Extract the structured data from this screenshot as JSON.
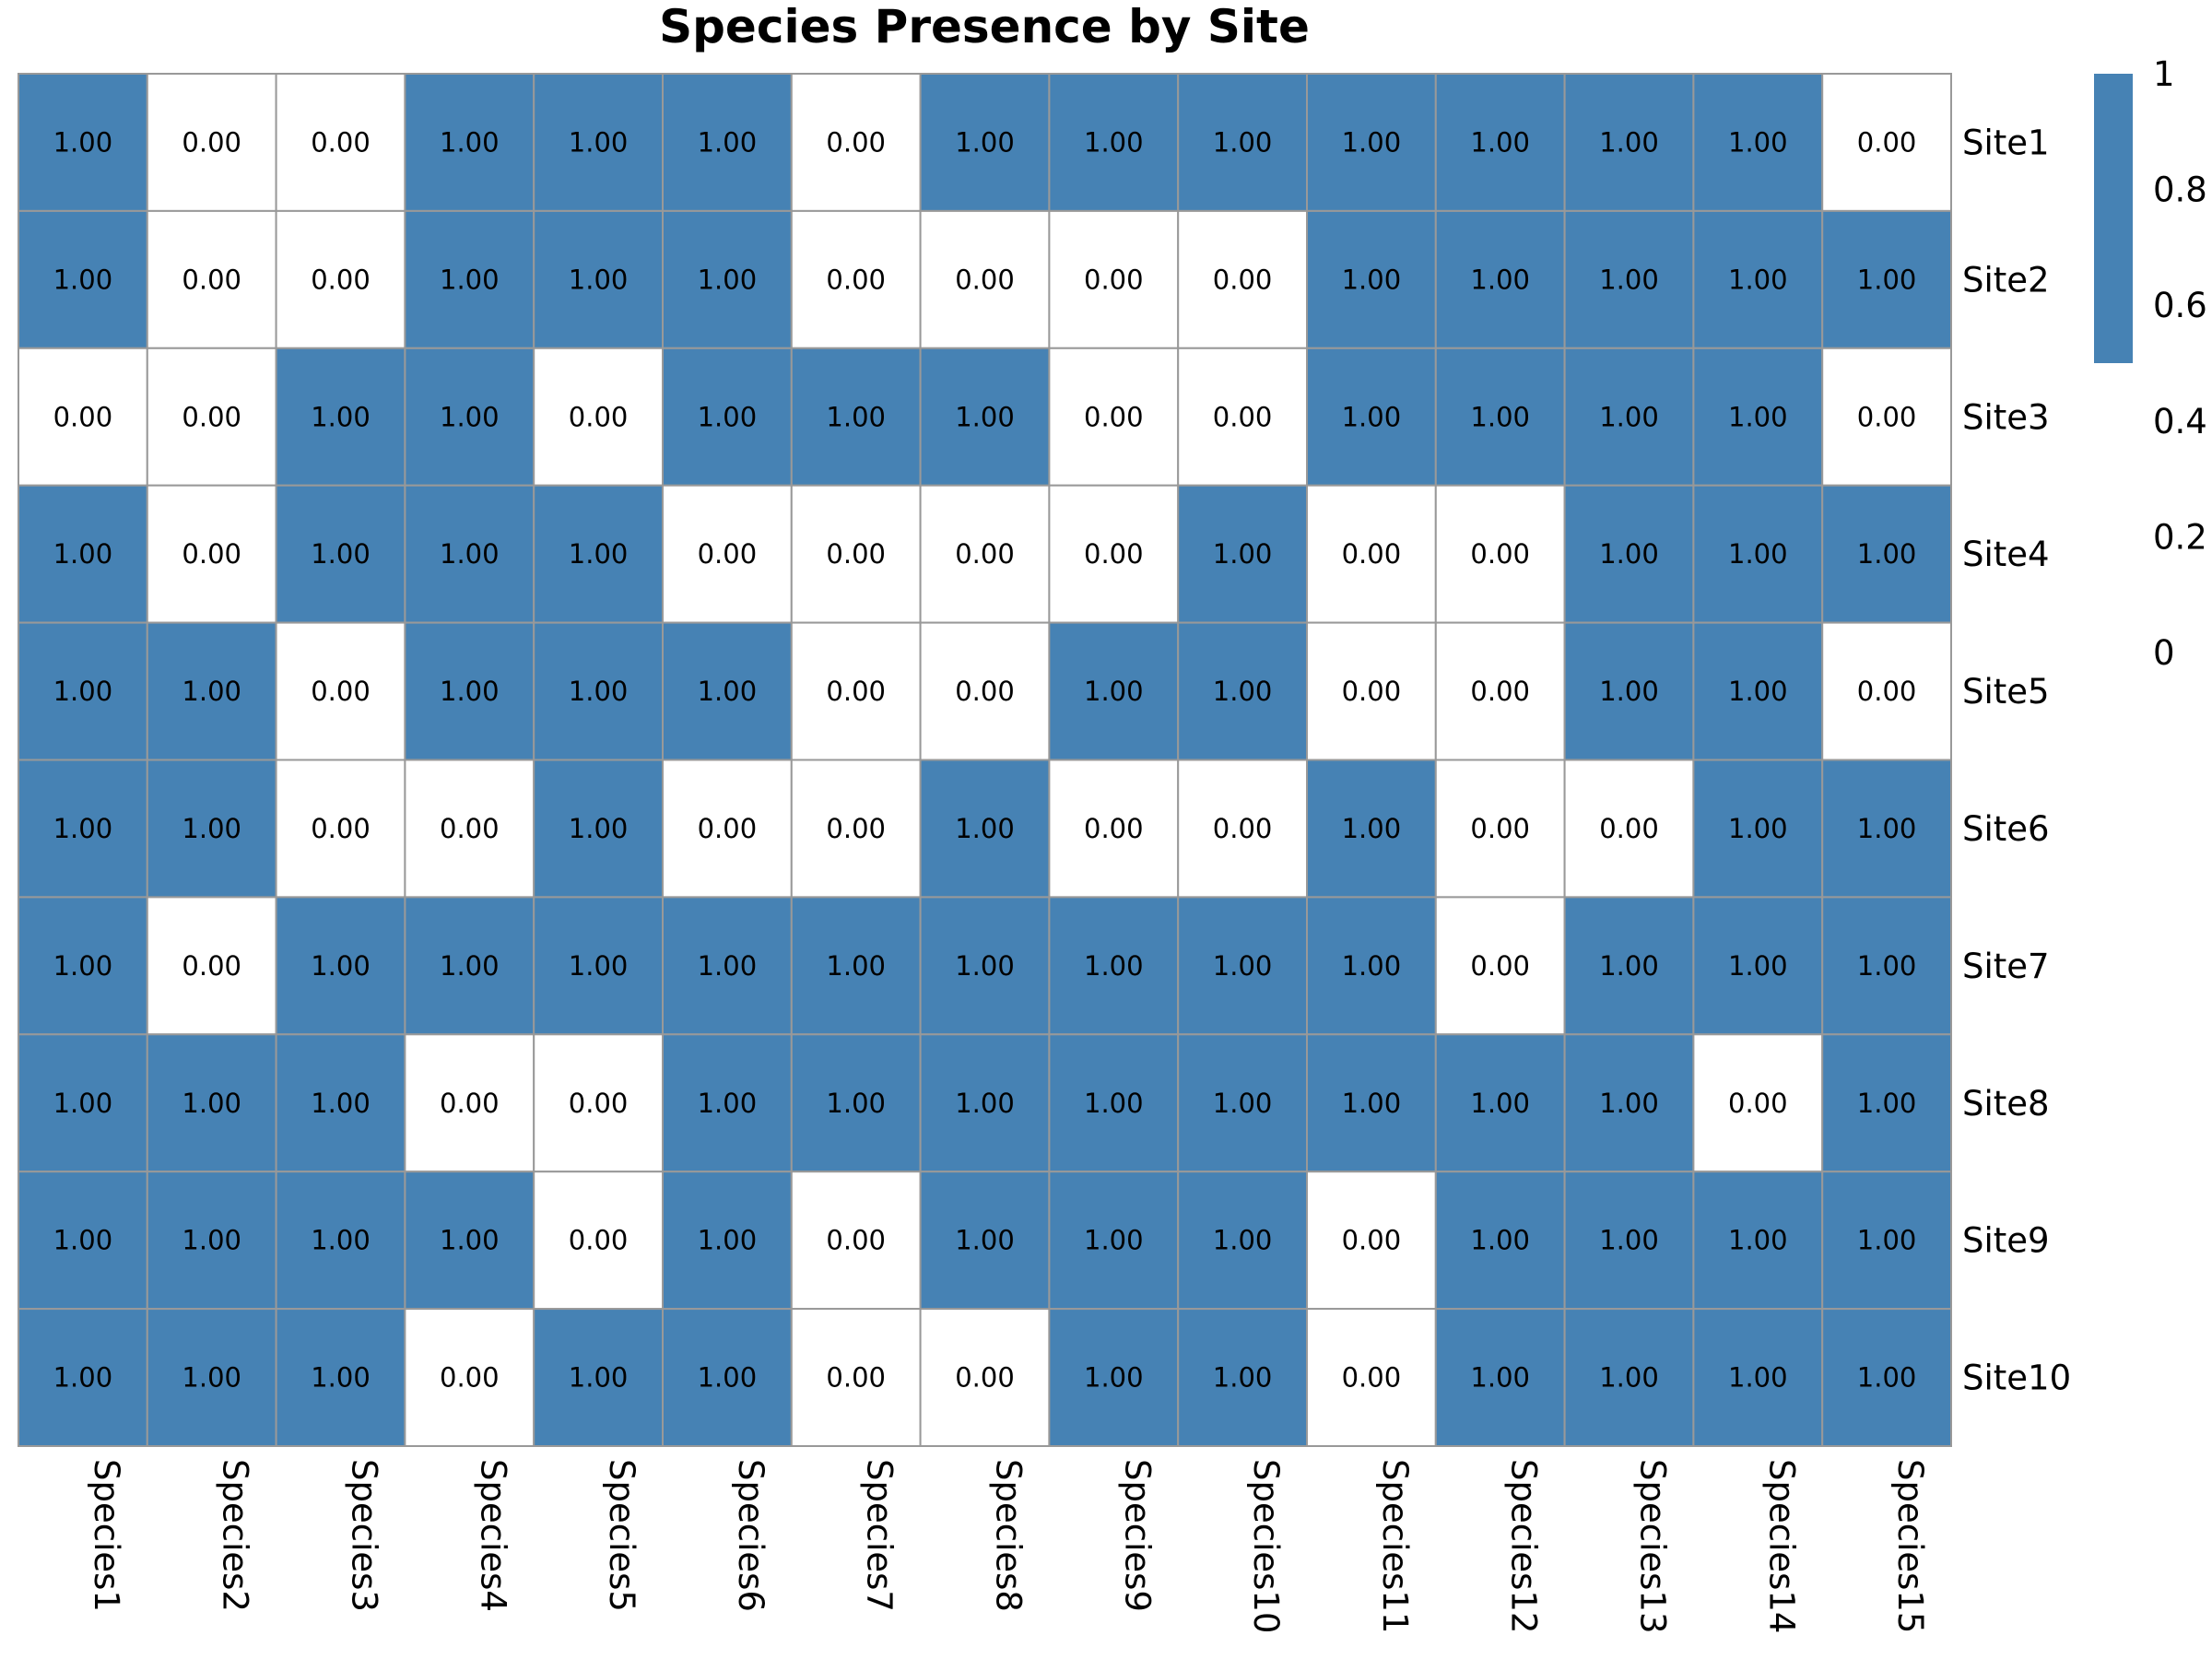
{
  "chart_data": {
    "type": "heatmap",
    "title": "Species Presence by Site",
    "x_labels": [
      "Species1",
      "Species2",
      "Species3",
      "Species4",
      "Species5",
      "Species6",
      "Species7",
      "Species8",
      "Species9",
      "Species10",
      "Species11",
      "Species12",
      "Species13",
      "Species14",
      "Species15"
    ],
    "y_labels": [
      "Site1",
      "Site2",
      "Site3",
      "Site4",
      "Site5",
      "Site6",
      "Site7",
      "Site8",
      "Site9",
      "Site10"
    ],
    "values": [
      [
        1,
        0,
        0,
        1,
        1,
        1,
        0,
        1,
        1,
        1,
        1,
        1,
        1,
        1,
        0
      ],
      [
        1,
        0,
        0,
        1,
        1,
        1,
        0,
        0,
        0,
        0,
        1,
        1,
        1,
        1,
        1
      ],
      [
        0,
        0,
        1,
        1,
        0,
        1,
        1,
        1,
        0,
        0,
        1,
        1,
        1,
        1,
        0
      ],
      [
        1,
        0,
        1,
        1,
        1,
        0,
        0,
        0,
        0,
        1,
        0,
        0,
        1,
        1,
        1
      ],
      [
        1,
        1,
        0,
        1,
        1,
        1,
        0,
        0,
        1,
        1,
        0,
        0,
        1,
        1,
        0
      ],
      [
        1,
        1,
        0,
        0,
        1,
        0,
        0,
        1,
        0,
        0,
        1,
        0,
        0,
        1,
        1
      ],
      [
        1,
        0,
        1,
        1,
        1,
        1,
        1,
        1,
        1,
        1,
        1,
        0,
        1,
        1,
        1
      ],
      [
        1,
        1,
        1,
        0,
        0,
        1,
        1,
        1,
        1,
        1,
        1,
        1,
        1,
        0,
        1
      ],
      [
        1,
        1,
        1,
        1,
        0,
        1,
        0,
        1,
        1,
        1,
        0,
        1,
        1,
        1,
        1
      ],
      [
        1,
        1,
        1,
        0,
        1,
        1,
        0,
        0,
        1,
        1,
        0,
        1,
        1,
        1,
        1
      ]
    ],
    "value_format_decimals": 2,
    "colors": {
      "present": "#4682b4",
      "absent": "#ffffff",
      "grid": "#999999"
    },
    "colorbar": {
      "ticks": [
        "1",
        "0.8",
        "0.6",
        "0.4",
        "0.2",
        "0"
      ],
      "tick_values": [
        1,
        0.8,
        0.6,
        0.4,
        0.2,
        0
      ],
      "range": [
        0,
        1
      ],
      "filled_from": 0.5
    },
    "legend_position": "right"
  }
}
